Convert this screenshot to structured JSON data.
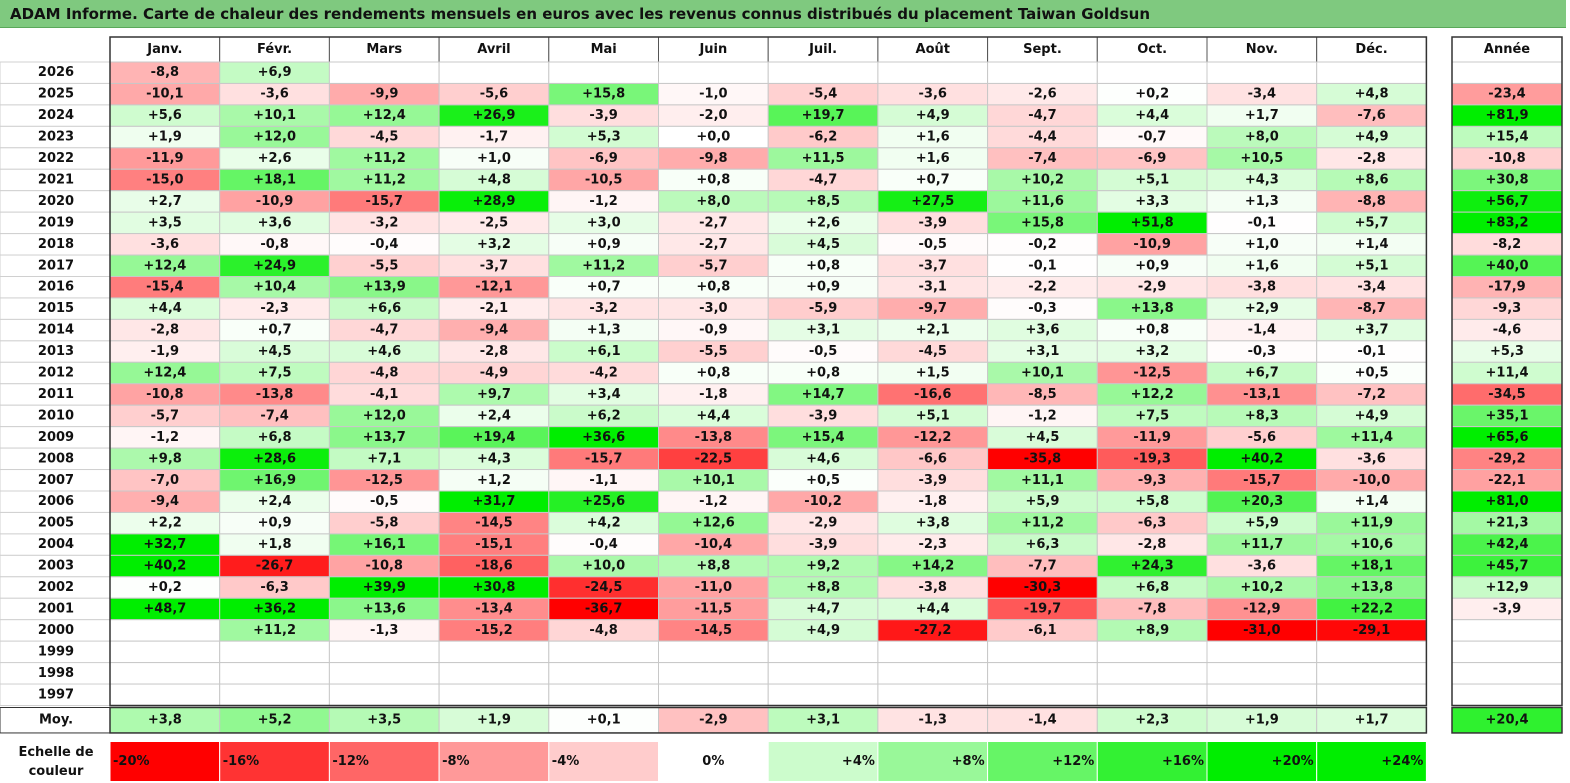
{
  "title": "ADAM Informe. Carte de chaleur des rendements mensuels en euros avec les revenus connus distribués du placement Taiwan Goldsun",
  "chart_data": {
    "type": "heatmap",
    "months": [
      "Janv.",
      "Févr.",
      "Mars",
      "Avril",
      "Mai",
      "Juin",
      "Juil.",
      "Août",
      "Sept.",
      "Oct.",
      "Nov.",
      "Déc."
    ],
    "year_header": "Année",
    "rows": [
      {
        "year": "2026",
        "months": [
          "-8,8",
          "+6,9",
          "",
          "",
          "",
          "",
          "",
          "",
          "",
          "",
          "",
          ""
        ],
        "annual": ""
      },
      {
        "year": "2025",
        "months": [
          "-10,1",
          "-3,6",
          "-9,9",
          "-5,6",
          "+15,8",
          "-1,0",
          "-5,4",
          "-3,6",
          "-2,6",
          "+0,2",
          "-3,4",
          "+4,8"
        ],
        "annual": "-23,4"
      },
      {
        "year": "2024",
        "months": [
          "+5,6",
          "+10,1",
          "+12,4",
          "+26,9",
          "-3,9",
          "-2,0",
          "+19,7",
          "+4,9",
          "-4,7",
          "+4,4",
          "+1,7",
          "-7,6"
        ],
        "annual": "+81,9"
      },
      {
        "year": "2023",
        "months": [
          "+1,9",
          "+12,0",
          "-4,5",
          "-1,7",
          "+5,3",
          "+0,0",
          "-6,2",
          "+1,6",
          "-4,4",
          "-0,7",
          "+8,0",
          "+4,9"
        ],
        "annual": "+15,4"
      },
      {
        "year": "2022",
        "months": [
          "-11,9",
          "+2,6",
          "+11,2",
          "+1,0",
          "-6,9",
          "-9,8",
          "+11,5",
          "+1,6",
          "-7,4",
          "-6,9",
          "+10,5",
          "-2,8"
        ],
        "annual": "-10,8"
      },
      {
        "year": "2021",
        "months": [
          "-15,0",
          "+18,1",
          "+11,2",
          "+4,8",
          "-10,5",
          "+0,8",
          "-4,7",
          "+0,7",
          "+10,2",
          "+5,1",
          "+4,3",
          "+8,6"
        ],
        "annual": "+30,8"
      },
      {
        "year": "2020",
        "months": [
          "+2,7",
          "-10,9",
          "-15,7",
          "+28,9",
          "-1,2",
          "+8,0",
          "+8,5",
          "+27,5",
          "+11,6",
          "+3,3",
          "+1,3",
          "-8,8"
        ],
        "annual": "+56,7"
      },
      {
        "year": "2019",
        "months": [
          "+3,5",
          "+3,6",
          "-3,2",
          "-2,5",
          "+3,0",
          "-2,7",
          "+2,6",
          "-3,9",
          "+15,8",
          "+51,8",
          "-0,1",
          "+5,7"
        ],
        "annual": "+83,2"
      },
      {
        "year": "2018",
        "months": [
          "-3,6",
          "-0,8",
          "-0,4",
          "+3,2",
          "+0,9",
          "-2,7",
          "+4,5",
          "-0,5",
          "-0,2",
          "-10,9",
          "+1,0",
          "+1,4"
        ],
        "annual": "-8,2"
      },
      {
        "year": "2017",
        "months": [
          "+12,4",
          "+24,9",
          "-5,5",
          "-3,7",
          "+11,2",
          "-5,7",
          "+0,8",
          "-3,7",
          "-0,1",
          "+0,9",
          "+1,6",
          "+5,1"
        ],
        "annual": "+40,0"
      },
      {
        "year": "2016",
        "months": [
          "-15,4",
          "+10,4",
          "+13,9",
          "-12,1",
          "+0,7",
          "+0,8",
          "+0,9",
          "-3,1",
          "-2,2",
          "-2,9",
          "-3,8",
          "-3,4"
        ],
        "annual": "-17,9"
      },
      {
        "year": "2015",
        "months": [
          "+4,4",
          "-2,3",
          "+6,6",
          "-2,1",
          "-3,2",
          "-3,0",
          "-5,9",
          "-9,7",
          "-0,3",
          "+13,8",
          "+2,9",
          "-8,7"
        ],
        "annual": "-9,3"
      },
      {
        "year": "2014",
        "months": [
          "-2,8",
          "+0,7",
          "-4,7",
          "-9,4",
          "+1,3",
          "-0,9",
          "+3,1",
          "+2,1",
          "+3,6",
          "+0,8",
          "-1,4",
          "+3,7"
        ],
        "annual": "-4,6"
      },
      {
        "year": "2013",
        "months": [
          "-1,9",
          "+4,5",
          "+4,6",
          "-2,8",
          "+6,1",
          "-5,5",
          "-0,5",
          "-4,5",
          "+3,1",
          "+3,2",
          "-0,3",
          "-0,1"
        ],
        "annual": "+5,3"
      },
      {
        "year": "2012",
        "months": [
          "+12,4",
          "+7,5",
          "-4,8",
          "-4,9",
          "-4,2",
          "+0,8",
          "+0,8",
          "+1,5",
          "+10,1",
          "-12,5",
          "+6,7",
          "+0,5"
        ],
        "annual": "+11,4"
      },
      {
        "year": "2011",
        "months": [
          "-10,8",
          "-13,8",
          "-4,1",
          "+9,7",
          "+3,4",
          "-1,8",
          "+14,7",
          "-16,6",
          "-8,5",
          "+12,2",
          "-13,1",
          "-7,2"
        ],
        "annual": "-34,5"
      },
      {
        "year": "2010",
        "months": [
          "-5,7",
          "-7,4",
          "+12,0",
          "+2,4",
          "+6,2",
          "+4,4",
          "-3,9",
          "+5,1",
          "-1,2",
          "+7,5",
          "+8,3",
          "+4,9"
        ],
        "annual": "+35,1"
      },
      {
        "year": "2009",
        "months": [
          "-1,2",
          "+6,8",
          "+13,7",
          "+19,4",
          "+36,6",
          "-13,8",
          "+15,4",
          "-12,2",
          "+4,5",
          "-11,9",
          "-5,6",
          "+11,4"
        ],
        "annual": "+65,6"
      },
      {
        "year": "2008",
        "months": [
          "+9,8",
          "+28,6",
          "+7,1",
          "+4,3",
          "-15,7",
          "-22,5",
          "+4,6",
          "-6,6",
          "-35,8",
          "-19,3",
          "+40,2",
          "-3,6"
        ],
        "annual": "-29,2"
      },
      {
        "year": "2007",
        "months": [
          "-7,0",
          "+16,9",
          "-12,5",
          "+1,2",
          "-1,1",
          "+10,1",
          "+0,5",
          "-3,9",
          "+11,1",
          "-9,3",
          "-15,7",
          "-10,0"
        ],
        "annual": "-22,1"
      },
      {
        "year": "2006",
        "months": [
          "-9,4",
          "+2,4",
          "-0,5",
          "+31,7",
          "+25,6",
          "-1,2",
          "-10,2",
          "-1,8",
          "+5,9",
          "+5,8",
          "+20,3",
          "+1,4"
        ],
        "annual": "+81,0"
      },
      {
        "year": "2005",
        "months": [
          "+2,2",
          "+0,9",
          "-5,8",
          "-14,5",
          "+4,2",
          "+12,6",
          "-2,9",
          "+3,8",
          "+11,2",
          "-6,3",
          "+5,9",
          "+11,9"
        ],
        "annual": "+21,3"
      },
      {
        "year": "2004",
        "months": [
          "+32,7",
          "+1,8",
          "+16,1",
          "-15,1",
          "-0,4",
          "-10,4",
          "-3,9",
          "-2,3",
          "+6,3",
          "-2,8",
          "+11,7",
          "+10,6"
        ],
        "annual": "+42,4"
      },
      {
        "year": "2003",
        "months": [
          "+40,2",
          "-26,7",
          "-10,8",
          "-18,6",
          "+10,0",
          "+8,8",
          "+9,2",
          "+14,2",
          "-7,7",
          "+24,3",
          "-3,6",
          "+18,1"
        ],
        "annual": "+45,7"
      },
      {
        "year": "2002",
        "months": [
          "+0,2",
          "-6,3",
          "+39,9",
          "+30,8",
          "-24,5",
          "-11,0",
          "+8,8",
          "-3,8",
          "-30,3",
          "+6,8",
          "+10,2",
          "+13,8"
        ],
        "annual": "+12,9"
      },
      {
        "year": "2001",
        "months": [
          "+48,7",
          "+36,2",
          "+13,6",
          "-13,4",
          "-36,7",
          "-11,5",
          "+4,7",
          "+4,4",
          "-19,7",
          "-7,8",
          "-12,9",
          "+22,2"
        ],
        "annual": "-3,9"
      },
      {
        "year": "2000",
        "months": [
          "",
          "+11,2",
          "-1,3",
          "-15,2",
          "-4,8",
          "-14,5",
          "+4,9",
          "-27,2",
          "-6,1",
          "+8,9",
          "-31,0",
          "-29,1"
        ],
        "annual": ""
      },
      {
        "year": "1999",
        "months": [
          "",
          "",
          "",
          "",
          "",
          "",
          "",
          "",
          "",
          "",
          "",
          ""
        ],
        "annual": ""
      },
      {
        "year": "1998",
        "months": [
          "",
          "",
          "",
          "",
          "",
          "",
          "",
          "",
          "",
          "",
          "",
          ""
        ],
        "annual": ""
      },
      {
        "year": "1997",
        "months": [
          "",
          "",
          "",
          "",
          "",
          "",
          "",
          "",
          "",
          "",
          "",
          ""
        ],
        "annual": ""
      }
    ],
    "average": {
      "label": "Moy.",
      "months": [
        "+3,8",
        "+5,2",
        "+3,5",
        "+1,9",
        "+0,1",
        "-2,9",
        "+3,1",
        "-1,3",
        "-1,4",
        "+2,3",
        "+1,9",
        "+1,7"
      ],
      "annual": "+20,4"
    },
    "scale": {
      "label_line1": "Echelle de",
      "label_line2": "couleur",
      "steps": [
        "-20%",
        "-16%",
        "-12%",
        "-8%",
        "-4%",
        "0%",
        "+4%",
        "+8%",
        "+12%",
        "+16%",
        "+20%",
        "+24%"
      ],
      "values": [
        -20,
        -16,
        -12,
        -8,
        -4,
        0,
        4,
        8,
        12,
        16,
        20,
        24
      ]
    },
    "colors": {
      "negative": "#ff0000",
      "positive": "#00ee00",
      "neutral": "#ffffff"
    }
  }
}
